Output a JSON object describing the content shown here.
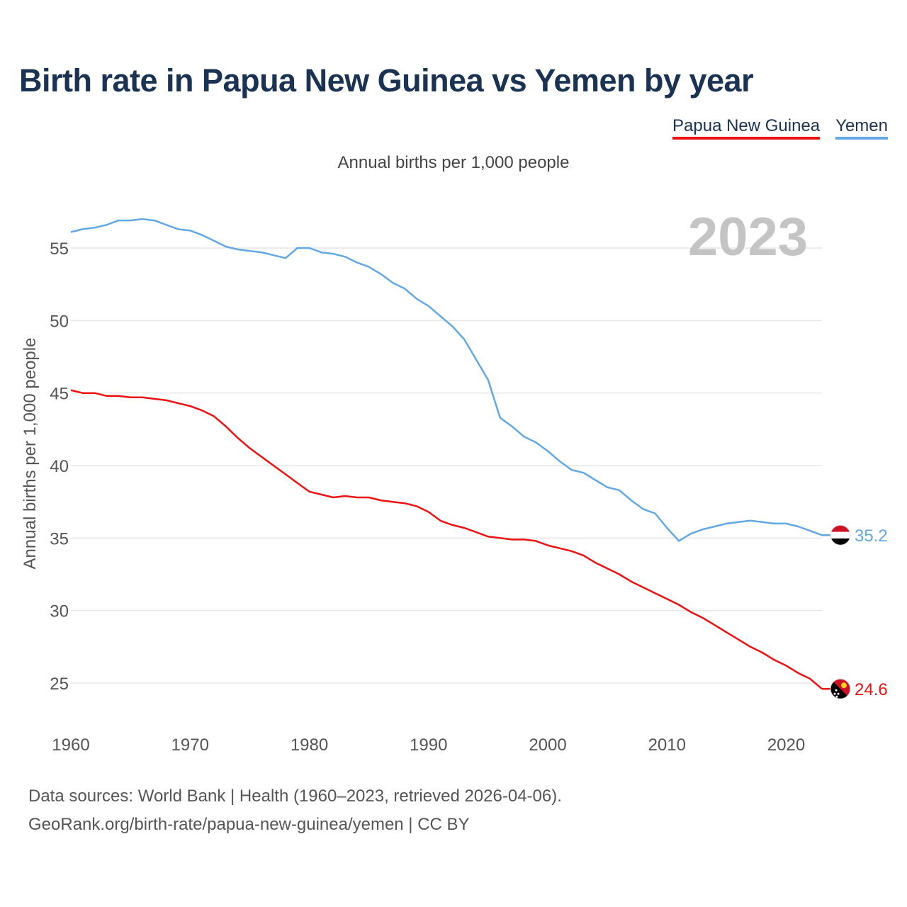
{
  "title": "Birth rate in Papua New Guinea vs Yemen by year",
  "subtitle": "Annual births per 1,000 people",
  "legend": [
    {
      "label": "Papua New Guinea",
      "color": "#ee1111"
    },
    {
      "label": "Yemen",
      "color": "#62a8e5"
    }
  ],
  "year_label": "2023",
  "source": {
    "line1": "Data sources: World Bank | Health (1960–2023, retrieved 2026-04-06).",
    "line2": "GeoRank.org/birth-rate/papua-new-guinea/yemen | CC BY"
  },
  "chart_data": {
    "type": "line",
    "title": "Birth rate in Papua New Guinea vs Yemen by year",
    "xlabel": "",
    "ylabel": "Annual births per 1,000 people",
    "xlim": [
      1960,
      2023
    ],
    "ylim": [
      22.5,
      58.5
    ],
    "xticks": [
      1960,
      1970,
      1980,
      1990,
      2000,
      2010,
      2020
    ],
    "yticks": [
      25,
      30,
      35,
      40,
      45,
      50,
      55
    ],
    "grid": true,
    "x": [
      1960,
      1961,
      1962,
      1963,
      1964,
      1965,
      1966,
      1967,
      1968,
      1969,
      1970,
      1971,
      1972,
      1973,
      1974,
      1975,
      1976,
      1977,
      1978,
      1979,
      1980,
      1981,
      1982,
      1983,
      1984,
      1985,
      1986,
      1987,
      1988,
      1989,
      1990,
      1991,
      1992,
      1993,
      1994,
      1995,
      1996,
      1997,
      1998,
      1999,
      2000,
      2001,
      2002,
      2003,
      2004,
      2005,
      2006,
      2007,
      2008,
      2009,
      2010,
      2011,
      2012,
      2013,
      2014,
      2015,
      2016,
      2017,
      2018,
      2019,
      2020,
      2021,
      2022,
      2023
    ],
    "series": [
      {
        "name": "Yemen",
        "color": "#62a8e5",
        "end_label": "35.2",
        "values": [
          56.1,
          56.3,
          56.4,
          56.6,
          56.9,
          56.9,
          57.0,
          56.9,
          56.6,
          56.3,
          56.2,
          55.9,
          55.5,
          55.1,
          54.9,
          54.8,
          54.7,
          54.5,
          54.3,
          55.0,
          55.0,
          54.7,
          54.6,
          54.4,
          54.0,
          53.7,
          53.2,
          52.6,
          52.2,
          51.5,
          51.0,
          50.3,
          49.6,
          48.7,
          47.3,
          45.9,
          43.3,
          42.7,
          42.0,
          41.6,
          41.0,
          40.3,
          39.7,
          39.5,
          39.0,
          38.5,
          38.3,
          37.6,
          37.0,
          36.7,
          35.7,
          34.8,
          35.3,
          35.6,
          35.8,
          36.0,
          36.1,
          36.2,
          36.1,
          36.0,
          36.0,
          35.8,
          35.5,
          35.2
        ]
      },
      {
        "name": "Papua New Guinea",
        "color": "#ee1111",
        "end_label": "24.6",
        "values": [
          45.2,
          45.0,
          45.0,
          44.8,
          44.8,
          44.7,
          44.7,
          44.6,
          44.5,
          44.3,
          44.1,
          43.8,
          43.4,
          42.7,
          41.9,
          41.2,
          40.6,
          40.0,
          39.4,
          38.8,
          38.2,
          38.0,
          37.8,
          37.9,
          37.8,
          37.8,
          37.6,
          37.5,
          37.4,
          37.2,
          36.8,
          36.2,
          35.9,
          35.7,
          35.4,
          35.1,
          35.0,
          34.9,
          34.9,
          34.8,
          34.5,
          34.3,
          34.1,
          33.8,
          33.3,
          32.9,
          32.5,
          32.0,
          31.6,
          31.2,
          30.8,
          30.4,
          29.9,
          29.5,
          29.0,
          28.5,
          28.0,
          27.5,
          27.1,
          26.6,
          26.2,
          25.7,
          25.3,
          24.6
        ]
      }
    ]
  }
}
